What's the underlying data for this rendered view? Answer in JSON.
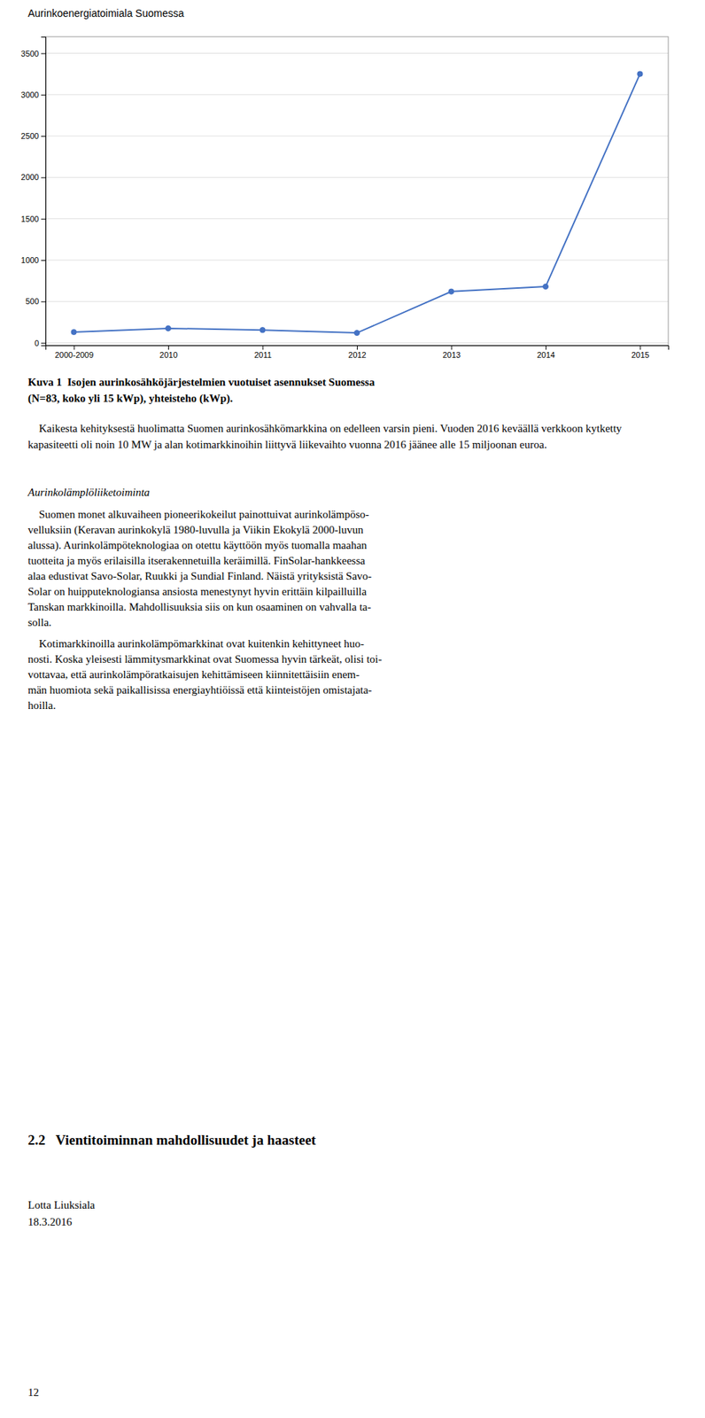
{
  "page_title": "Aurinkoenergiatoimiala Suomessa",
  "chart_data": {
    "type": "line",
    "categories": [
      "2000-2009",
      "2010",
      "2011",
      "2012",
      "2013",
      "2014",
      "2015"
    ],
    "values": [
      130,
      175,
      155,
      120,
      620,
      680,
      3250
    ],
    "color": "#4472C4",
    "marker": "circle",
    "ylim": [
      -30,
      3700
    ],
    "yticks": [
      0,
      500,
      1000,
      1500,
      2000,
      2500,
      3000,
      3500
    ],
    "grid": true
  },
  "figure_caption": [
    "Kuva 1  Isojen aurinkosähköjärjestelmien vuotuiset asennukset Suomessa",
    "(N=83, koko yli 15 kWp), yhteisteho (kWp)."
  ],
  "paragraph1": "    Kaikesta kehityksestä huolimatta Suomen aurinkosähkömarkkina on edelleen varsin pieni. Vuoden 2016 keväällä verkkoon kytketty kapasiteetti oli noin 10 MW ja alan kotimarkkinoihin liittyvä liikevaihto vuonna 2016 jäänee alle 15 miljoonan euroa.",
  "italic_heading": "Aurinkolämplöliiketoiminta",
  "paragraph2": [
    "    Suomen monet alkuvaiheen pioneerikokeilut painottuivat aurinkolämpöso-",
    "velluksiin (Keravan aurinkokylä 1980-luvulla ja Viikin Ekokylä 2000-luvun",
    "alussa). Aurinkolämpöteknologiaa on otettu käyttöön myös tuomalla maahan",
    "tuotteita ja myös erilaisilla itserakennetuilla keräimillä. FinSolar-hankkeessa",
    "alaa edustivat Savo-Solar, Ruukki ja Sundial Finland. Näistä yrityksistä Savo-",
    "Solar on huipputeknologiansa ansiosta menestynyt hyvin erittäin kilpailluilla",
    "Tanskan markkinoilla. Mahdollisuuksia siis on kun osaaminen on vahvalla ta-",
    "solla."
  ],
  "paragraph3": [
    "    Kotimarkkinoilla aurinkolämpömarkkinat ovat kuitenkin kehittyneet huo-",
    "nosti. Koska yleisesti lämmitysmarkkinat ovat Suomessa hyvin tärkeät, olisi toi-",
    "vottavaa, että aurinkolämpöratkaisujen kehittämiseen kiinnitettäisiin enem-",
    "män huomiota sekä paikallisissa energiayhtiöissä että kiinteistöjen omistajata-",
    "hoilla."
  ],
  "section_heading": "2.2   Vientitoiminnan mahdollisuudet ja haasteet",
  "author": "Lotta Liuksiala",
  "date": "18.3.2016",
  "page_number": "12"
}
